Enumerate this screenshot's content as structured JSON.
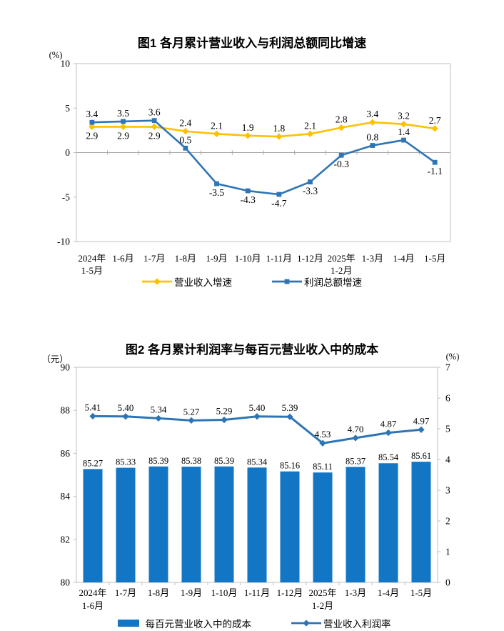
{
  "page": {
    "background": "#ffffff"
  },
  "colors": {
    "revenue_line": "#FFC000",
    "profit_line": "#2E75B6",
    "cost_bar": "#1276C4",
    "margin_line": "#2E75B6",
    "plot_border": "#BFBFBF",
    "zero_line": "#A6A6A6"
  },
  "chart_data": [
    {
      "type": "line",
      "title": "图1 各月累计营业收入与利润总额同比增速",
      "unit": "(%)",
      "ylim": [
        -10,
        10
      ],
      "yticks": [
        {
          "v": 10,
          "label": "10"
        },
        {
          "v": 5,
          "label": "5"
        },
        {
          "v": 0,
          "label": "0"
        },
        {
          "v": -5,
          "label": "-5"
        },
        {
          "v": -10,
          "label": "-10"
        }
      ],
      "grid": "zero-line-only",
      "legend_position": "bottom",
      "categories": [
        [
          "2024年",
          "1-5月"
        ],
        [
          "1-6月"
        ],
        [
          "1-7月"
        ],
        [
          "1-8月"
        ],
        [
          "1-9月"
        ],
        [
          "1-10月"
        ],
        [
          "1-11月"
        ],
        [
          "1-12月"
        ],
        [
          "2025年",
          "1-2月"
        ],
        [
          "1-3月"
        ],
        [
          "1-4月"
        ],
        [
          "1-5月"
        ]
      ],
      "series": [
        {
          "name": "营业收入增速",
          "color": "#FFC000",
          "marker": "diamond",
          "values": [
            2.9,
            2.9,
            2.9,
            2.4,
            2.1,
            1.9,
            1.8,
            2.1,
            2.8,
            3.4,
            3.2,
            2.7
          ],
          "labels": [
            "2.9",
            "2.9",
            "2.9",
            "2.4",
            "2.1",
            "1.9",
            "1.8",
            "2.1",
            "2.8",
            "3.4",
            "3.2",
            "2.7"
          ],
          "label_pos": [
            "below",
            "below",
            "below",
            "above",
            "above",
            "above",
            "above",
            "above",
            "above",
            "above",
            "above",
            "above"
          ]
        },
        {
          "name": "利润总额增速",
          "color": "#2E75B6",
          "marker": "square",
          "values": [
            3.4,
            3.5,
            3.6,
            0.5,
            -3.5,
            -4.3,
            -4.7,
            -3.3,
            -0.3,
            0.8,
            1.4,
            -1.1
          ],
          "labels": [
            "3.4",
            "3.5",
            "3.6",
            "0.5",
            "-3.5",
            "-4.3",
            "-4.7",
            "-3.3",
            "-0.3",
            "0.8",
            "1.4",
            "-1.1"
          ],
          "label_pos": [
            "above",
            "above",
            "above",
            "above",
            "below",
            "below",
            "below",
            "below",
            "below",
            "above",
            "above",
            "below"
          ]
        }
      ]
    },
    {
      "type": "bar+line",
      "title": "图2 各月累计利润率与每百元营业收入中的成本",
      "unit_left": "（元）",
      "unit_right": "(%)",
      "left_ylim": [
        80,
        90
      ],
      "right_ylim": [
        0,
        7
      ],
      "left_yticks": [
        {
          "v": 90,
          "label": "90"
        },
        {
          "v": 88,
          "label": "88"
        },
        {
          "v": 86,
          "label": "86"
        },
        {
          "v": 84,
          "label": "84"
        },
        {
          "v": 82,
          "label": "82"
        },
        {
          "v": 80,
          "label": "80"
        }
      ],
      "right_yticks": [
        {
          "v": 7,
          "label": "7"
        },
        {
          "v": 6,
          "label": "6"
        },
        {
          "v": 5,
          "label": "5"
        },
        {
          "v": 4,
          "label": "4"
        },
        {
          "v": 3,
          "label": "3"
        },
        {
          "v": 2,
          "label": "2"
        },
        {
          "v": 1,
          "label": "1"
        },
        {
          "v": 0,
          "label": "0"
        }
      ],
      "grid": "off",
      "legend_position": "bottom",
      "categories": [
        [
          "2024年",
          "1-6月"
        ],
        [
          "1-7月"
        ],
        [
          "1-8月"
        ],
        [
          "1-9月"
        ],
        [
          "1-10月"
        ],
        [
          "1-11月"
        ],
        [
          "1-12月"
        ],
        [
          "2025年",
          "1-2月"
        ],
        [
          "1-3月"
        ],
        [
          "1-4月"
        ],
        [
          "1-5月"
        ]
      ],
      "series": [
        {
          "name": "每百元营业收入中的成本",
          "kind": "bar",
          "axis": "left",
          "color": "#1276C4",
          "values": [
            85.27,
            85.33,
            85.39,
            85.38,
            85.39,
            85.34,
            85.16,
            85.11,
            85.37,
            85.54,
            85.61
          ],
          "labels": [
            "85.27",
            "85.33",
            "85.39",
            "85.38",
            "85.39",
            "85.34",
            "85.16",
            "85.11",
            "85.37",
            "85.54",
            "85.61"
          ]
        },
        {
          "name": "营业收入利润率",
          "kind": "line",
          "axis": "right",
          "color": "#2E75B6",
          "marker": "diamond",
          "values": [
            5.41,
            5.4,
            5.34,
            5.27,
            5.29,
            5.4,
            5.39,
            4.53,
            4.7,
            4.87,
            4.97
          ],
          "labels": [
            "5.41",
            "5.40",
            "5.34",
            "5.27",
            "5.29",
            "5.40",
            "5.39",
            "4.53",
            "4.70",
            "4.87",
            "4.97"
          ]
        }
      ]
    }
  ]
}
